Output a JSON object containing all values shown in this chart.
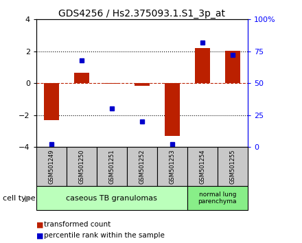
{
  "title": "GDS4256 / Hs2.375093.1.S1_3p_at",
  "samples": [
    "GSM501249",
    "GSM501250",
    "GSM501251",
    "GSM501252",
    "GSM501253",
    "GSM501254",
    "GSM501255"
  ],
  "red_bars": [
    -2.3,
    0.65,
    -0.05,
    -0.15,
    -3.3,
    2.2,
    2.05
  ],
  "blue_pct": [
    2,
    68,
    30,
    20,
    2,
    82,
    72
  ],
  "ylim_left": [
    -4,
    4
  ],
  "ylim_right": [
    0,
    100
  ],
  "yticks_left": [
    -4,
    -2,
    0,
    2,
    4
  ],
  "yticks_right": [
    0,
    25,
    50,
    75,
    100
  ],
  "ytick_labels_right": [
    "0",
    "25",
    "50",
    "75",
    "100%"
  ],
  "group1_indices": [
    0,
    1,
    2,
    3,
    4
  ],
  "group2_indices": [
    5,
    6
  ],
  "group1_label": "caseous TB granulomas",
  "group2_label": "normal lung\nparenchyma",
  "cell_type_label": "cell type",
  "legend_red": "transformed count",
  "legend_blue": "percentile rank within the sample",
  "bar_color": "#BB2000",
  "blue_color": "#0000CC",
  "group1_bg": "#BBFFBB",
  "group2_bg": "#88EE88",
  "sample_bg": "#C8C8C8",
  "bar_width": 0.5
}
